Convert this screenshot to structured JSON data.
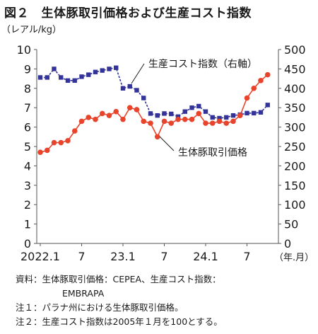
{
  "title": "図２　生体豚取引価格および生産コスト指数",
  "chart_data": {
    "type": "line",
    "y_left_label": "（レアル/kg）",
    "y_left_range": [
      0,
      10
    ],
    "y_left_ticks": [
      "0",
      "1",
      "2",
      "3",
      "4",
      "5",
      "6",
      "7",
      "8",
      "9",
      "10"
    ],
    "y_right_range": [
      0,
      500
    ],
    "y_right_ticks": [
      "0",
      "50",
      "100",
      "150",
      "200",
      "250",
      "300",
      "350",
      "400",
      "450",
      "500"
    ],
    "x_ticks": [
      "2022.1",
      "7",
      "23.1",
      "7",
      "24.1",
      "7"
    ],
    "x_unit": "（年.月）",
    "grid": false,
    "series": [
      {
        "name": "生体豚取引価格",
        "axis": "left",
        "color": "#e8442c",
        "marker": "circle",
        "line": "solid",
        "values": [
          4.7,
          4.8,
          5.2,
          5.2,
          5.3,
          5.8,
          6.3,
          6.5,
          6.4,
          6.7,
          6.6,
          6.8,
          6.4,
          7.0,
          6.9,
          6.3,
          6.2,
          5.5,
          6.3,
          6.2,
          6.4,
          6.4,
          6.4,
          6.7,
          6.2,
          6.2,
          6.3,
          6.2,
          6.3,
          6.6,
          7.5,
          8.0,
          8.4,
          8.7
        ]
      },
      {
        "name": "生産コスト指数（右軸）",
        "axis": "right",
        "color": "#333399",
        "marker": "square",
        "line": "dashed",
        "values": [
          428,
          428,
          450,
          428,
          420,
          420,
          430,
          435,
          442,
          446,
          450,
          453,
          400,
          405,
          395,
          375,
          335,
          330,
          335,
          334,
          327,
          340,
          350,
          354,
          340,
          325,
          323,
          325,
          330,
          332,
          336,
          336,
          338,
          357
        ]
      }
    ],
    "annotations": [
      "生産コスト指数（右軸）",
      "生体豚取引価格"
    ]
  },
  "notes": [
    "資料：生体豚取引価格：CEPEA、生産コスト指数：",
    "EMBRAPA",
    "注１：パラナ州における生体豚取引価格。",
    "注２：生産コスト指数は2005年１月を100とする。"
  ]
}
